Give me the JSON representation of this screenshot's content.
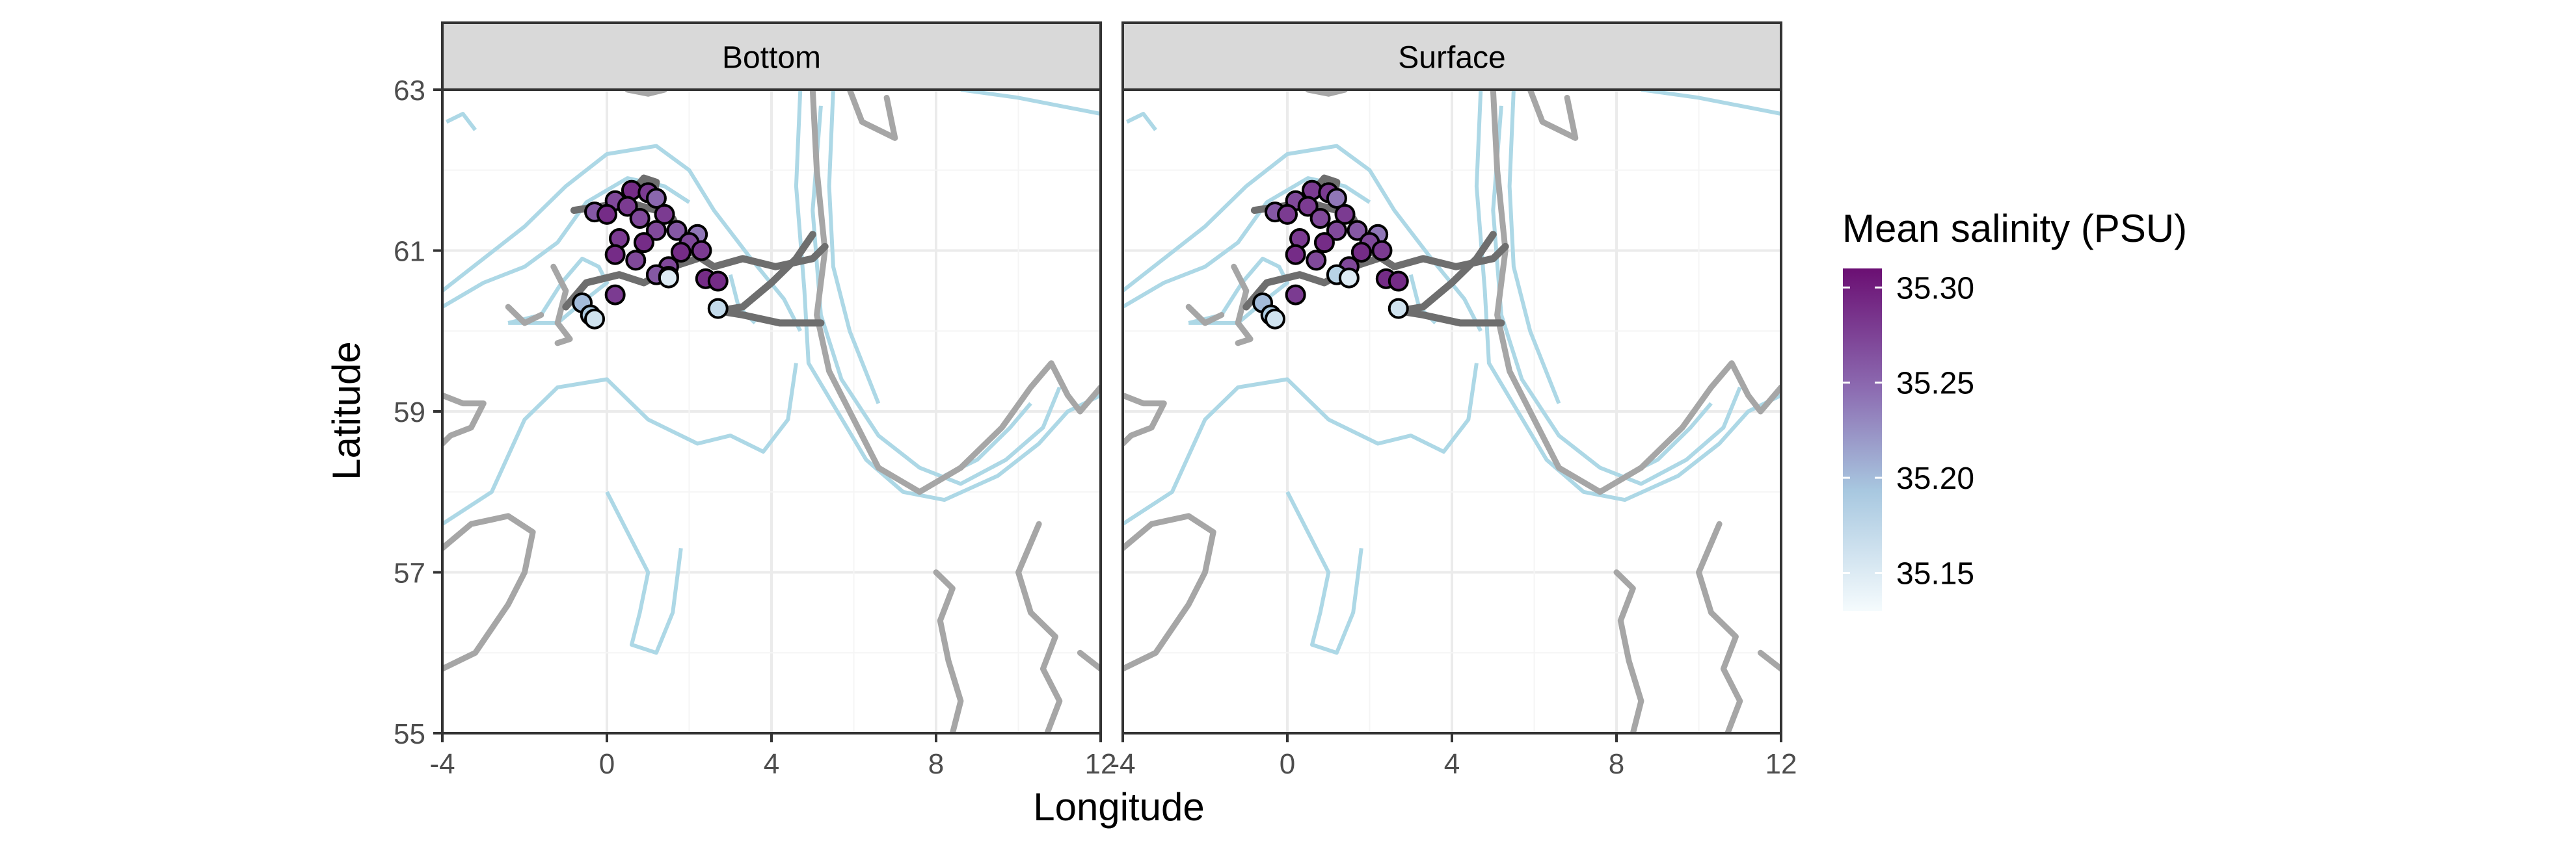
{
  "chart_data": {
    "type": "scatter",
    "title": "",
    "xlabel": "Longitude",
    "ylabel": "Latitude",
    "xlim": [
      -4,
      12
    ],
    "ylim": [
      55,
      63
    ],
    "x_ticks": [
      -4,
      0,
      4,
      8,
      12
    ],
    "y_ticks": [
      55,
      57,
      59,
      61,
      63
    ],
    "grid": true,
    "legend": {
      "title": "Mean salinity (PSU)",
      "position": "right",
      "type": "colorbar",
      "range": [
        35.13,
        35.31
      ],
      "ticks": [
        "35.15",
        "35.20",
        "35.25",
        "35.30"
      ],
      "colors": [
        "#f5fbfd",
        "#a8c8e0",
        "#8c6bb1",
        "#6b0f73"
      ]
    },
    "colors": {
      "contour": "#add8e6",
      "land": "#a6a6a6",
      "pipeline": "#6e6e6e",
      "strip": "#d9d9d9",
      "grid": "#ebebeb"
    },
    "facets": [
      {
        "label": "Bottom",
        "points": [
          {
            "lon": 0.6,
            "lat": 61.75,
            "sal": 35.29
          },
          {
            "lon": 1.0,
            "lat": 61.72,
            "sal": 35.28
          },
          {
            "lon": 1.2,
            "lat": 61.65,
            "sal": 35.25
          },
          {
            "lon": 0.2,
            "lat": 61.62,
            "sal": 35.27
          },
          {
            "lon": 0.5,
            "lat": 61.55,
            "sal": 35.28
          },
          {
            "lon": -0.3,
            "lat": 61.48,
            "sal": 35.26
          },
          {
            "lon": 0.0,
            "lat": 61.45,
            "sal": 35.29
          },
          {
            "lon": 0.8,
            "lat": 61.4,
            "sal": 35.27
          },
          {
            "lon": 1.4,
            "lat": 61.45,
            "sal": 35.28
          },
          {
            "lon": 1.7,
            "lat": 61.25,
            "sal": 35.26
          },
          {
            "lon": 2.2,
            "lat": 61.2,
            "sal": 35.24
          },
          {
            "lon": 1.2,
            "lat": 61.25,
            "sal": 35.27
          },
          {
            "lon": 0.3,
            "lat": 61.15,
            "sal": 35.28
          },
          {
            "lon": 0.9,
            "lat": 61.1,
            "sal": 35.29
          },
          {
            "lon": 2.0,
            "lat": 61.1,
            "sal": 35.27
          },
          {
            "lon": 2.3,
            "lat": 61.0,
            "sal": 35.28
          },
          {
            "lon": 1.8,
            "lat": 60.98,
            "sal": 35.29
          },
          {
            "lon": 0.2,
            "lat": 60.95,
            "sal": 35.29
          },
          {
            "lon": 0.7,
            "lat": 60.88,
            "sal": 35.27
          },
          {
            "lon": 1.5,
            "lat": 60.8,
            "sal": 35.27
          },
          {
            "lon": 1.2,
            "lat": 60.7,
            "sal": 35.26
          },
          {
            "lon": 1.5,
            "lat": 60.68,
            "sal": 35.19
          },
          {
            "lon": 1.5,
            "lat": 60.66,
            "sal": 35.15
          },
          {
            "lon": 2.4,
            "lat": 60.65,
            "sal": 35.29
          },
          {
            "lon": 2.7,
            "lat": 60.62,
            "sal": 35.29
          },
          {
            "lon": 0.2,
            "lat": 60.45,
            "sal": 35.28
          },
          {
            "lon": -0.6,
            "lat": 60.35,
            "sal": 35.2
          },
          {
            "lon": -0.4,
            "lat": 60.2,
            "sal": 35.19
          },
          {
            "lon": -0.3,
            "lat": 60.15,
            "sal": 35.16
          },
          {
            "lon": 2.7,
            "lat": 60.28,
            "sal": 35.17
          }
        ]
      },
      {
        "label": "Surface",
        "points": [
          {
            "lon": 0.6,
            "lat": 61.75,
            "sal": 35.28
          },
          {
            "lon": 1.0,
            "lat": 61.72,
            "sal": 35.28
          },
          {
            "lon": 1.2,
            "lat": 61.65,
            "sal": 35.24
          },
          {
            "lon": 0.2,
            "lat": 61.62,
            "sal": 35.27
          },
          {
            "lon": 0.5,
            "lat": 61.55,
            "sal": 35.28
          },
          {
            "lon": -0.3,
            "lat": 61.48,
            "sal": 35.26
          },
          {
            "lon": 0.0,
            "lat": 61.45,
            "sal": 35.28
          },
          {
            "lon": 0.8,
            "lat": 61.4,
            "sal": 35.27
          },
          {
            "lon": 1.4,
            "lat": 61.45,
            "sal": 35.28
          },
          {
            "lon": 1.7,
            "lat": 61.25,
            "sal": 35.26
          },
          {
            "lon": 2.2,
            "lat": 61.2,
            "sal": 35.24
          },
          {
            "lon": 1.2,
            "lat": 61.25,
            "sal": 35.27
          },
          {
            "lon": 0.3,
            "lat": 61.15,
            "sal": 35.28
          },
          {
            "lon": 0.9,
            "lat": 61.1,
            "sal": 35.29
          },
          {
            "lon": 2.0,
            "lat": 61.1,
            "sal": 35.27
          },
          {
            "lon": 2.3,
            "lat": 61.0,
            "sal": 35.28
          },
          {
            "lon": 1.8,
            "lat": 60.98,
            "sal": 35.29
          },
          {
            "lon": 0.2,
            "lat": 60.95,
            "sal": 35.29
          },
          {
            "lon": 0.7,
            "lat": 60.88,
            "sal": 35.27
          },
          {
            "lon": 1.5,
            "lat": 60.8,
            "sal": 35.27
          },
          {
            "lon": 1.2,
            "lat": 60.7,
            "sal": 35.18
          },
          {
            "lon": 1.5,
            "lat": 60.66,
            "sal": 35.15
          },
          {
            "lon": 2.4,
            "lat": 60.65,
            "sal": 35.29
          },
          {
            "lon": 2.7,
            "lat": 60.62,
            "sal": 35.29
          },
          {
            "lon": 0.2,
            "lat": 60.45,
            "sal": 35.28
          },
          {
            "lon": -0.6,
            "lat": 60.35,
            "sal": 35.2
          },
          {
            "lon": -0.4,
            "lat": 60.2,
            "sal": 35.19
          },
          {
            "lon": -0.3,
            "lat": 60.15,
            "sal": 35.16
          },
          {
            "lon": 2.7,
            "lat": 60.28,
            "sal": 35.16
          }
        ]
      }
    ],
    "contours": [
      [
        [
          -4,
          60.5
        ],
        [
          -3.0,
          60.9
        ],
        [
          -2.0,
          61.3
        ],
        [
          -1.0,
          61.8
        ],
        [
          0.0,
          62.2
        ],
        [
          1.2,
          62.3
        ],
        [
          2.0,
          62.0
        ],
        [
          2.6,
          61.5
        ],
        [
          3.5,
          60.9
        ],
        [
          4.3,
          60.4
        ],
        [
          4.7,
          60.0
        ]
      ],
      [
        [
          -4,
          60.3
        ],
        [
          -3.0,
          60.6
        ],
        [
          -2.0,
          60.8
        ],
        [
          -1.2,
          61.1
        ],
        [
          -0.5,
          61.6
        ],
        [
          0.5,
          61.9
        ],
        [
          1.4,
          61.8
        ],
        [
          2.0,
          61.6
        ]
      ],
      [
        [
          -3.9,
          62.6
        ],
        [
          -3.5,
          62.7
        ],
        [
          -3.2,
          62.5
        ]
      ],
      [
        [
          -2.4,
          60.1
        ],
        [
          -1.6,
          60.2
        ],
        [
          -1.1,
          60.6
        ],
        [
          -0.6,
          60.9
        ],
        [
          -0.2,
          60.8
        ],
        [
          0.0,
          60.6
        ],
        [
          -0.5,
          60.4
        ],
        [
          -1.2,
          60.1
        ],
        [
          -2.4,
          60.1
        ]
      ],
      [
        [
          -4,
          57.6
        ],
        [
          -2.8,
          58.0
        ],
        [
          -2.0,
          58.9
        ],
        [
          -1.2,
          59.3
        ],
        [
          0.0,
          59.4
        ],
        [
          1.0,
          58.9
        ],
        [
          2.2,
          58.6
        ],
        [
          3.0,
          58.7
        ],
        [
          3.8,
          58.5
        ],
        [
          4.4,
          58.9
        ],
        [
          4.6,
          59.6
        ]
      ],
      [
        [
          0.0,
          58.0
        ],
        [
          0.5,
          57.5
        ],
        [
          1.0,
          57.0
        ],
        [
          0.8,
          56.5
        ],
        [
          0.6,
          56.1
        ],
        [
          1.2,
          56.0
        ],
        [
          1.6,
          56.5
        ],
        [
          1.8,
          57.3
        ]
      ],
      [
        [
          4.7,
          63
        ],
        [
          4.6,
          61.8
        ],
        [
          4.8,
          60.5
        ],
        [
          4.9,
          59.6
        ],
        [
          5.6,
          59.0
        ],
        [
          6.3,
          58.4
        ],
        [
          7.2,
          58.0
        ],
        [
          8.2,
          57.9
        ],
        [
          9.5,
          58.2
        ],
        [
          10.5,
          58.6
        ],
        [
          11.2,
          59.0
        ],
        [
          12,
          59.2
        ]
      ],
      [
        [
          5.2,
          62.8
        ],
        [
          5.0,
          61.5
        ],
        [
          5.2,
          60.2
        ],
        [
          5.7,
          59.4
        ],
        [
          6.6,
          58.7
        ],
        [
          7.6,
          58.3
        ],
        [
          8.6,
          58.1
        ],
        [
          9.7,
          58.4
        ],
        [
          10.6,
          58.8
        ],
        [
          11.0,
          59.3
        ]
      ],
      [
        [
          5.5,
          63
        ],
        [
          5.4,
          61.8
        ],
        [
          5.5,
          60.8
        ],
        [
          5.9,
          60.0
        ],
        [
          6.6,
          59.1
        ]
      ],
      [
        [
          8.2,
          58.2
        ],
        [
          9.0,
          58.4
        ],
        [
          9.8,
          58.8
        ],
        [
          10.3,
          59.1
        ]
      ],
      [
        [
          8.6,
          63
        ],
        [
          10.0,
          62.9
        ],
        [
          12,
          62.7
        ]
      ],
      [
        [
          3.0,
          60.7
        ],
        [
          3.2,
          60.3
        ],
        [
          3.6,
          60.1
        ]
      ]
    ],
    "land": [
      [
        [
          -4,
          57.3
        ],
        [
          -3.3,
          57.6
        ],
        [
          -2.4,
          57.7
        ],
        [
          -1.8,
          57.5
        ],
        [
          -2.0,
          57.0
        ],
        [
          -2.4,
          56.6
        ],
        [
          -3.2,
          56.0
        ],
        [
          -4,
          55.8
        ]
      ],
      [
        [
          -4,
          59.2
        ],
        [
          -3.5,
          59.1
        ],
        [
          -3.0,
          59.1
        ],
        [
          -3.3,
          58.8
        ],
        [
          -3.8,
          58.7
        ],
        [
          -4,
          58.6
        ]
      ],
      [
        [
          -1.3,
          60.8
        ],
        [
          -1.0,
          60.5
        ],
        [
          -1.2,
          60.1
        ],
        [
          -0.9,
          59.9
        ],
        [
          -1.2,
          59.85
        ]
      ],
      [
        [
          5.0,
          63
        ],
        [
          5.1,
          62.0
        ],
        [
          5.3,
          61.0
        ],
        [
          5.1,
          60.2
        ],
        [
          5.4,
          59.5
        ],
        [
          5.9,
          59.0
        ],
        [
          6.6,
          58.3
        ],
        [
          7.6,
          58.0
        ],
        [
          8.6,
          58.3
        ],
        [
          9.6,
          58.8
        ],
        [
          10.3,
          59.3
        ],
        [
          10.8,
          59.6
        ],
        [
          11.2,
          59.2
        ],
        [
          11.5,
          59.0
        ],
        [
          12,
          59.3
        ]
      ],
      [
        [
          5.9,
          63
        ],
        [
          6.2,
          62.6
        ],
        [
          7.0,
          62.4
        ],
        [
          6.8,
          62.9
        ]
      ],
      [
        [
          8.0,
          57.0
        ],
        [
          8.4,
          56.8
        ],
        [
          8.1,
          56.4
        ],
        [
          8.3,
          55.9
        ],
        [
          8.6,
          55.4
        ],
        [
          8.4,
          55.0
        ]
      ],
      [
        [
          10.5,
          57.6
        ],
        [
          10.0,
          57.0
        ],
        [
          10.3,
          56.5
        ],
        [
          10.9,
          56.2
        ],
        [
          10.6,
          55.8
        ],
        [
          11.0,
          55.4
        ],
        [
          10.7,
          55.0
        ]
      ],
      [
        [
          11.5,
          56.0
        ],
        [
          12,
          55.8
        ]
      ],
      [
        [
          -2.4,
          60.3
        ],
        [
          -2.0,
          60.1
        ],
        [
          -1.6,
          60.2
        ]
      ],
      [
        [
          0.5,
          63
        ],
        [
          1.0,
          62.95
        ],
        [
          1.4,
          63
        ]
      ]
    ],
    "pipelines": [
      [
        [
          -0.8,
          61.5
        ],
        [
          0.5,
          61.6
        ],
        [
          1.2,
          61.5
        ],
        [
          1.6,
          61.4
        ],
        [
          2.0,
          61.0
        ],
        [
          2.6,
          60.8
        ],
        [
          3.3,
          60.9
        ],
        [
          4.1,
          60.8
        ],
        [
          5.0,
          60.9
        ],
        [
          5.3,
          61.05
        ]
      ],
      [
        [
          5.0,
          61.2
        ],
        [
          4.6,
          60.9
        ],
        [
          4.0,
          60.6
        ],
        [
          3.3,
          60.3
        ],
        [
          2.7,
          60.25
        ],
        [
          3.3,
          60.2
        ],
        [
          4.2,
          60.1
        ],
        [
          5.2,
          60.1
        ]
      ],
      [
        [
          -1.0,
          60.3
        ],
        [
          -0.5,
          60.6
        ],
        [
          0.3,
          60.7
        ],
        [
          0.9,
          60.6
        ],
        [
          1.6,
          60.8
        ],
        [
          2.2,
          60.9
        ]
      ],
      [
        [
          0.4,
          61.6
        ],
        [
          0.9,
          61.9
        ],
        [
          1.2,
          61.85
        ],
        [
          1.1,
          61.6
        ]
      ]
    ]
  }
}
